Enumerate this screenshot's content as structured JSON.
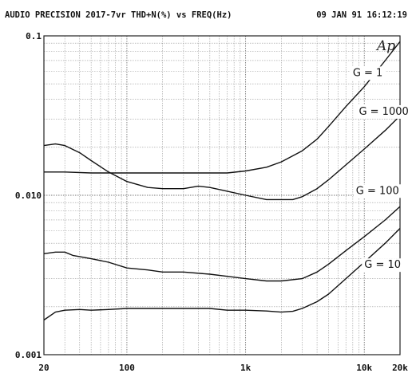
{
  "header": {
    "title": "AUDIO PRECISION 2017-7vr THD+N(%) vs FREQ(Hz)",
    "timestamp": "09 JAN 91 16:12:19"
  },
  "logo_text": "Ap",
  "chart_data": {
    "type": "line",
    "title": "AUDIO PRECISION 2017-7vr THD+N(%) vs FREQ(Hz)",
    "xlabel": "FREQ(Hz)",
    "ylabel": "THD+N(%)",
    "x_scale": "log",
    "y_scale": "log",
    "xlim": [
      20,
      20000
    ],
    "ylim": [
      0.001,
      0.1
    ],
    "grid": true,
    "x_tick_labels": [
      {
        "value": 20,
        "label": "20"
      },
      {
        "value": 100,
        "label": "100"
      },
      {
        "value": 1000,
        "label": "1k"
      },
      {
        "value": 10000,
        "label": "10k"
      },
      {
        "value": 20000,
        "label": "20k"
      }
    ],
    "y_tick_labels": [
      {
        "value": 0.1,
        "label": "0.1"
      },
      {
        "value": 0.01,
        "label": "0.010"
      },
      {
        "value": 0.001,
        "label": "0.001"
      }
    ],
    "series": [
      {
        "name": "G = 1",
        "label_at": {
          "x": 8000,
          "y": 0.056
        },
        "points": [
          [
            20,
            0.014
          ],
          [
            30,
            0.014
          ],
          [
            50,
            0.0138
          ],
          [
            80,
            0.0138
          ],
          [
            100,
            0.0138
          ],
          [
            200,
            0.0138
          ],
          [
            400,
            0.0138
          ],
          [
            700,
            0.0138
          ],
          [
            1000,
            0.0142
          ],
          [
            1500,
            0.015
          ],
          [
            2000,
            0.0162
          ],
          [
            3000,
            0.019
          ],
          [
            4000,
            0.0225
          ],
          [
            5000,
            0.027
          ],
          [
            7000,
            0.036
          ],
          [
            10000,
            0.048
          ],
          [
            15000,
            0.07
          ],
          [
            20000,
            0.092
          ]
        ]
      },
      {
        "name": "G = 1000",
        "label_at": {
          "x": 9000,
          "y": 0.032
        },
        "points": [
          [
            20,
            0.0205
          ],
          [
            25,
            0.021
          ],
          [
            30,
            0.0205
          ],
          [
            40,
            0.0185
          ],
          [
            50,
            0.0165
          ],
          [
            70,
            0.014
          ],
          [
            100,
            0.0122
          ],
          [
            150,
            0.0112
          ],
          [
            200,
            0.011
          ],
          [
            300,
            0.011
          ],
          [
            400,
            0.0114
          ],
          [
            500,
            0.0112
          ],
          [
            700,
            0.0106
          ],
          [
            1000,
            0.01
          ],
          [
            1500,
            0.0094
          ],
          [
            2000,
            0.0094
          ],
          [
            2500,
            0.0094
          ],
          [
            3000,
            0.0098
          ],
          [
            4000,
            0.011
          ],
          [
            5000,
            0.0125
          ],
          [
            7000,
            0.0155
          ],
          [
            10000,
            0.0195
          ],
          [
            15000,
            0.0255
          ],
          [
            20000,
            0.0315
          ]
        ]
      },
      {
        "name": "G = 100",
        "label_at": {
          "x": 8500,
          "y": 0.0102
        },
        "points": [
          [
            20,
            0.0043
          ],
          [
            25,
            0.0044
          ],
          [
            30,
            0.0044
          ],
          [
            35,
            0.0042
          ],
          [
            50,
            0.004
          ],
          [
            70,
            0.0038
          ],
          [
            100,
            0.0035
          ],
          [
            150,
            0.0034
          ],
          [
            200,
            0.0033
          ],
          [
            300,
            0.0033
          ],
          [
            500,
            0.0032
          ],
          [
            700,
            0.0031
          ],
          [
            1000,
            0.003
          ],
          [
            1500,
            0.0029
          ],
          [
            2000,
            0.0029
          ],
          [
            3000,
            0.003
          ],
          [
            4000,
            0.0033
          ],
          [
            5000,
            0.0037
          ],
          [
            7000,
            0.0045
          ],
          [
            10000,
            0.0055
          ],
          [
            15000,
            0.007
          ],
          [
            20000,
            0.0085
          ]
        ]
      },
      {
        "name": "G = 10",
        "label_at": {
          "x": 10000,
          "y": 0.0035
        },
        "points": [
          [
            20,
            0.00165
          ],
          [
            25,
            0.00185
          ],
          [
            30,
            0.0019
          ],
          [
            40,
            0.00192
          ],
          [
            50,
            0.0019
          ],
          [
            70,
            0.00192
          ],
          [
            100,
            0.00195
          ],
          [
            150,
            0.00195
          ],
          [
            200,
            0.00195
          ],
          [
            300,
            0.00195
          ],
          [
            500,
            0.00195
          ],
          [
            700,
            0.0019
          ],
          [
            1000,
            0.0019
          ],
          [
            1500,
            0.00188
          ],
          [
            2000,
            0.00185
          ],
          [
            2500,
            0.00187
          ],
          [
            3000,
            0.00195
          ],
          [
            4000,
            0.00215
          ],
          [
            5000,
            0.0024
          ],
          [
            7000,
            0.003
          ],
          [
            10000,
            0.0038
          ],
          [
            15000,
            0.005
          ],
          [
            20000,
            0.0062
          ]
        ]
      }
    ]
  }
}
